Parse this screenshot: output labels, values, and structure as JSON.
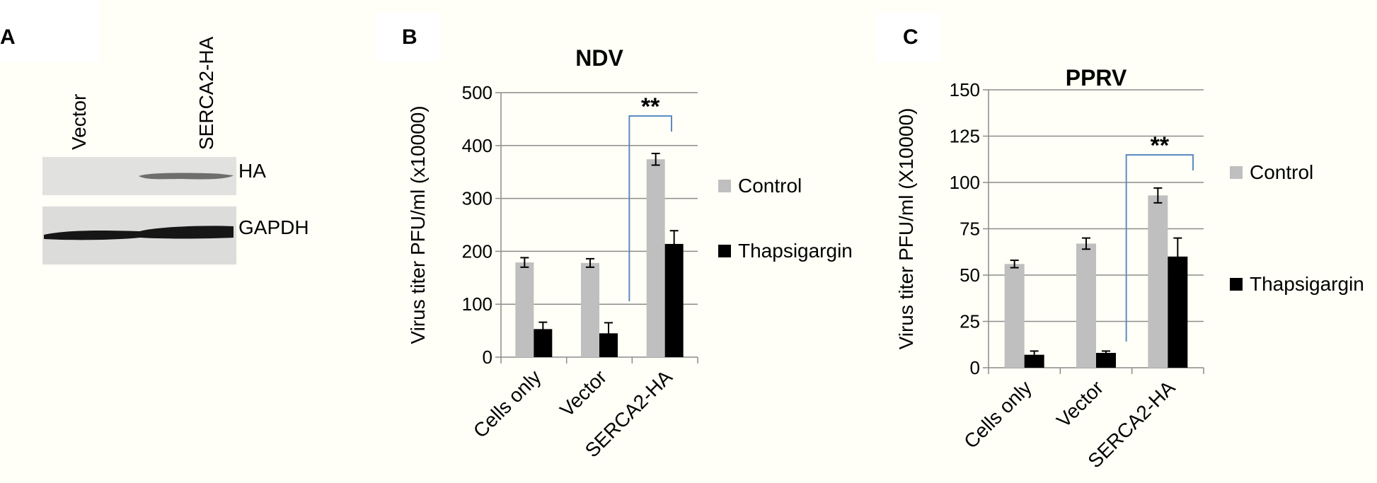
{
  "panels": {
    "a": {
      "label": "A"
    },
    "b": {
      "label": "B"
    },
    "c": {
      "label": "C"
    }
  },
  "western_blot": {
    "lanes": [
      "Vector",
      "SERCA2-HA"
    ],
    "bands": [
      "HA",
      "GAPDH"
    ]
  },
  "chart_data": [
    {
      "type": "bar",
      "title": "NDV",
      "ylabel": "Virus titer PFU/ml (x10000)",
      "xlabel": "",
      "ylim": [
        0,
        500
      ],
      "yticks": [
        0,
        100,
        200,
        300,
        400,
        500
      ],
      "grid": true,
      "legend_position": "right",
      "categories": [
        "Cells only",
        "Vector",
        "SERCA2-HA"
      ],
      "series": [
        {
          "name": "Control",
          "color": "#bfbfbf",
          "values": [
            179,
            178,
            374
          ],
          "errors": [
            9,
            8,
            11
          ]
        },
        {
          "name": "Thapsigargin",
          "color": "#000000",
          "values": [
            53,
            45,
            214
          ],
          "errors": [
            13,
            20,
            25
          ]
        }
      ],
      "annotation": {
        "text": "**",
        "from_category": "Vector",
        "to_category": "SERCA2-HA"
      }
    },
    {
      "type": "bar",
      "title": "PPRV",
      "ylabel": "Virus titer PFU/ml (X10000)",
      "xlabel": "",
      "ylim": [
        0,
        150
      ],
      "yticks": [
        0,
        25,
        50,
        75,
        100,
        125,
        150
      ],
      "grid": true,
      "legend_position": "right",
      "categories": [
        "Cells only",
        "Vector",
        "SERCA2-HA"
      ],
      "series": [
        {
          "name": "Control",
          "color": "#bfbfbf",
          "values": [
            56,
            67,
            93
          ],
          "errors": [
            2,
            3,
            4
          ]
        },
        {
          "name": "Thapsigargin",
          "color": "#000000",
          "values": [
            7,
            8,
            60
          ],
          "errors": [
            2,
            1,
            10
          ]
        }
      ],
      "annotation": {
        "text": "**",
        "from_category": "Vector",
        "to_category": "SERCA2-HA"
      }
    }
  ]
}
